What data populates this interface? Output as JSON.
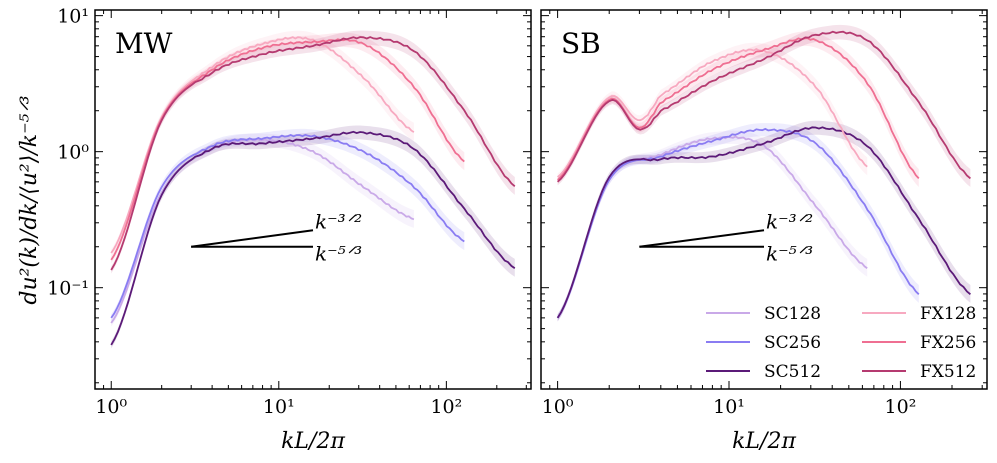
{
  "chart_data": {
    "type": "line",
    "ylabel": "du²(k)/dk/⟨u²⟩/k⁻⁵ᐟ³",
    "xlabel": "kL/2π",
    "xscale": "log",
    "yscale": "log",
    "xlim": [
      0.8,
      320
    ],
    "ylim": [
      0.018,
      11
    ],
    "x_ticks": [
      {
        "value": 1,
        "label": "10⁰"
      },
      {
        "value": 10,
        "label": "10¹"
      },
      {
        "value": 100,
        "label": "10²"
      }
    ],
    "y_ticks": [
      {
        "value": 0.1,
        "label": "10⁻¹"
      },
      {
        "value": 1,
        "label": "10⁰"
      },
      {
        "value": 10,
        "label": "10¹"
      }
    ],
    "reference_lines": [
      {
        "label": "k⁻³ᐟ²",
        "slope": 0.1667,
        "x": [
          3,
          16
        ],
        "y0": 0.2
      },
      {
        "label": "k⁻⁵ᐟ³",
        "slope": 0,
        "x": [
          3,
          16
        ],
        "y0": 0.2
      }
    ],
    "legend": {
      "location": "lower-right",
      "ncol": 2
    },
    "colors": {
      "SC128": "#c9a9e8",
      "SC256": "#8a7cf2",
      "SC512": "#5b1a78",
      "FX128": "#f7a9c0",
      "FX256": "#ef6f92",
      "FX512": "#b53a70"
    },
    "panels": [
      {
        "title": "MW",
        "series": [
          {
            "name": "SC128",
            "x": [
              1,
              2,
              4,
              8,
              16,
              32,
              64
            ],
            "y": [
              0.055,
              0.5,
              1.05,
              1.22,
              1.0,
              0.55,
              0.32
            ]
          },
          {
            "name": "SC256",
            "x": [
              1,
              2,
              4,
              8,
              16,
              32,
              64,
              128
            ],
            "y": [
              0.06,
              0.55,
              1.1,
              1.25,
              1.3,
              1.0,
              0.55,
              0.22
            ]
          },
          {
            "name": "SC512",
            "x": [
              1,
              2,
              4,
              8,
              16,
              32,
              64,
              128,
              256
            ],
            "y": [
              0.038,
              0.48,
              1.05,
              1.15,
              1.25,
              1.38,
              1.05,
              0.38,
              0.14
            ]
          },
          {
            "name": "FX128",
            "x": [
              1,
              2,
              4,
              8,
              16,
              32,
              64
            ],
            "y": [
              0.18,
              1.8,
              4.2,
              6.2,
              6.6,
              3.5,
              1.4
            ]
          },
          {
            "name": "FX256",
            "x": [
              1,
              2,
              4,
              8,
              16,
              32,
              64,
              128
            ],
            "y": [
              0.16,
              1.75,
              4.0,
              5.8,
              6.4,
              6.2,
              3.0,
              0.85
            ]
          },
          {
            "name": "FX512",
            "x": [
              1,
              2,
              4,
              8,
              16,
              32,
              64,
              128,
              256
            ],
            "y": [
              0.135,
              1.7,
              3.8,
              5.2,
              6.0,
              6.9,
              5.5,
              2.0,
              0.56
            ]
          }
        ]
      },
      {
        "title": "SB",
        "series": [
          {
            "name": "SC128",
            "x": [
              1,
              2,
              4,
              8,
              16,
              32,
              64
            ],
            "y": [
              0.06,
              0.62,
              0.95,
              1.25,
              1.1,
              0.4,
              0.14
            ]
          },
          {
            "name": "SC256",
            "x": [
              1,
              2,
              4,
              8,
              16,
              32,
              64,
              128
            ],
            "y": [
              0.06,
              0.62,
              0.92,
              1.2,
              1.45,
              1.15,
              0.38,
              0.09
            ]
          },
          {
            "name": "SC512",
            "x": [
              1,
              2,
              4,
              8,
              16,
              32,
              64,
              128,
              256
            ],
            "y": [
              0.06,
              0.65,
              0.88,
              0.92,
              1.15,
              1.5,
              1.1,
              0.32,
              0.09
            ]
          },
          {
            "name": "FX128",
            "x": [
              1,
              2,
              3,
              4,
              8,
              16,
              32,
              64
            ],
            "y": [
              0.65,
              2.5,
              1.7,
              2.6,
              4.6,
              5.5,
              3.0,
              0.78
            ]
          },
          {
            "name": "FX256",
            "x": [
              1,
              2,
              3,
              4,
              8,
              16,
              32,
              64,
              128
            ],
            "y": [
              0.62,
              2.4,
              1.5,
              2.3,
              4.0,
              5.6,
              6.6,
              3.2,
              0.64
            ]
          },
          {
            "name": "FX512",
            "x": [
              1,
              2,
              3,
              4,
              8,
              16,
              32,
              64,
              128,
              256
            ],
            "y": [
              0.6,
              2.35,
              1.45,
              2.0,
              3.3,
              4.8,
              7.2,
              6.6,
              2.3,
              0.64
            ]
          }
        ]
      }
    ]
  }
}
